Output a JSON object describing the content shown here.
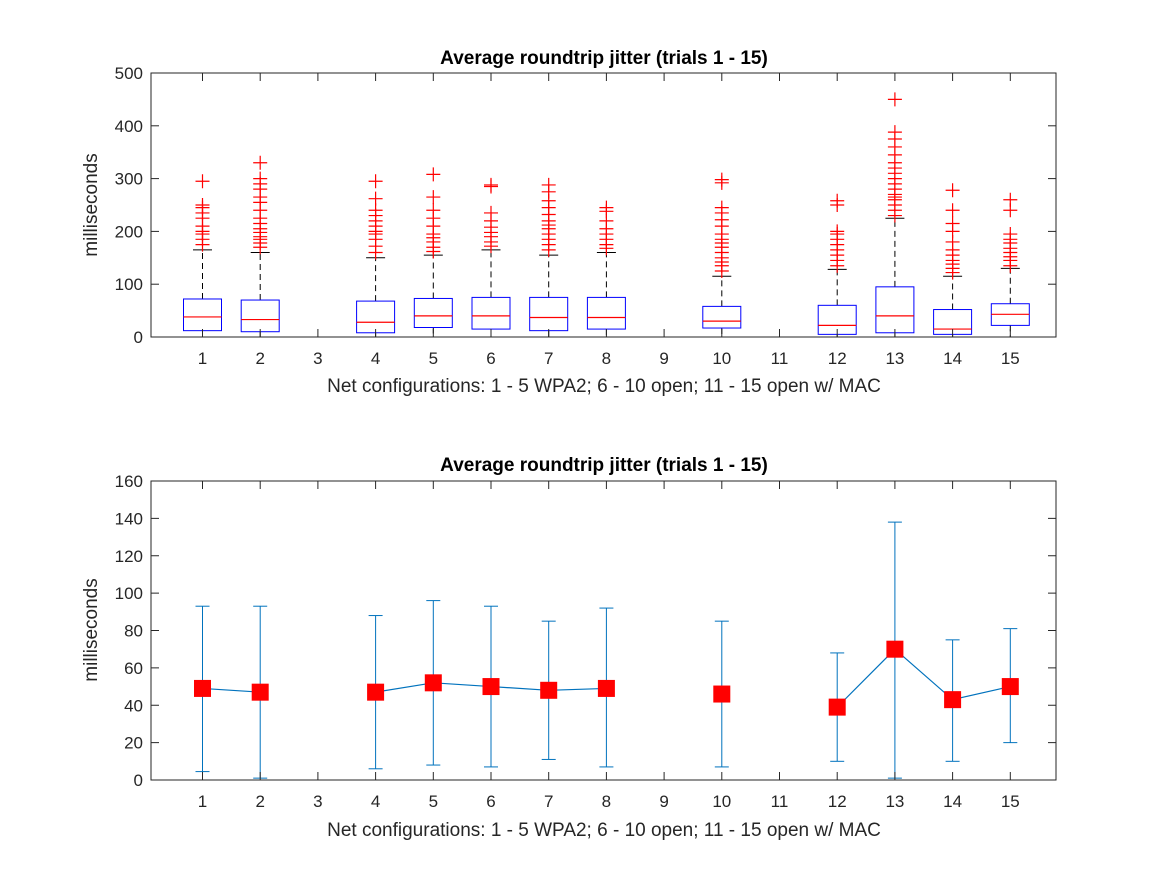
{
  "chart_data": [
    {
      "type": "box",
      "title": "Average roundtrip jitter (trials 1 - 15)",
      "xlabel": "Net configurations: 1 - 5 WPA2; 6 - 10 open; 11 - 15 open w/ MAC",
      "ylabel": "milliseconds",
      "ylim": [
        0,
        500
      ],
      "yticks": [
        0,
        100,
        200,
        300,
        400,
        500
      ],
      "x_categories": [
        "1",
        "2",
        "3",
        "4",
        "5",
        "6",
        "7",
        "8",
        "9",
        "10",
        "11",
        "12",
        "13",
        "14",
        "15"
      ],
      "colors": {
        "box": "#0000ff",
        "median": "#ff0000",
        "whisker": "#000000",
        "outlier": "#ff0000"
      },
      "boxes": [
        {
          "x": 1,
          "q1": 12,
          "median": 38,
          "q3": 72,
          "whisker_low": 0,
          "whisker_high": 165,
          "outliers": [
            175,
            185,
            195,
            200,
            210,
            225,
            235,
            245,
            250,
            295
          ]
        },
        {
          "x": 2,
          "q1": 10,
          "median": 33,
          "q3": 70,
          "whisker_low": 0,
          "whisker_high": 160,
          "outliers": [
            170,
            178,
            185,
            190,
            198,
            205,
            215,
            225,
            240,
            255,
            265,
            280,
            290,
            300,
            330
          ]
        },
        {
          "x": 4,
          "q1": 8,
          "median": 28,
          "q3": 68,
          "whisker_low": 0,
          "whisker_high": 150,
          "outliers": [
            160,
            172,
            185,
            195,
            200,
            210,
            220,
            230,
            240,
            262,
            295
          ]
        },
        {
          "x": 5,
          "q1": 18,
          "median": 40,
          "q3": 73,
          "whisker_low": 0,
          "whisker_high": 155,
          "outliers": [
            162,
            170,
            180,
            188,
            195,
            210,
            225,
            240,
            265,
            308
          ]
        },
        {
          "x": 6,
          "q1": 15,
          "median": 40,
          "q3": 75,
          "whisker_low": 0,
          "whisker_high": 165,
          "outliers": [
            172,
            180,
            190,
            198,
            208,
            220,
            235,
            285,
            288
          ]
        },
        {
          "x": 7,
          "q1": 12,
          "median": 37,
          "q3": 75,
          "whisker_low": 0,
          "whisker_high": 155,
          "outliers": [
            165,
            175,
            185,
            195,
            205,
            212,
            220,
            232,
            245,
            258,
            275,
            288
          ]
        },
        {
          "x": 8,
          "q1": 15,
          "median": 37,
          "q3": 75,
          "whisker_low": 0,
          "whisker_high": 160,
          "outliers": [
            168,
            175,
            185,
            195,
            205,
            220,
            238,
            245
          ]
        },
        {
          "x": 10,
          "q1": 17,
          "median": 30,
          "q3": 58,
          "whisker_low": 0,
          "whisker_high": 115,
          "outliers": [
            125,
            135,
            142,
            150,
            160,
            170,
            178,
            185,
            195,
            210,
            222,
            235,
            245,
            292,
            298
          ]
        },
        {
          "x": 12,
          "q1": 5,
          "median": 22,
          "q3": 60,
          "whisker_low": 0,
          "whisker_high": 128,
          "outliers": [
            135,
            145,
            155,
            165,
            175,
            185,
            195,
            200,
            250,
            258
          ]
        },
        {
          "x": 13,
          "q1": 8,
          "median": 40,
          "q3": 95,
          "whisker_low": 0,
          "whisker_high": 225,
          "outliers": [
            230,
            240,
            250,
            260,
            265,
            270,
            280,
            290,
            300,
            310,
            320,
            330,
            345,
            360,
            375,
            388,
            450
          ]
        },
        {
          "x": 14,
          "q1": 5,
          "median": 15,
          "q3": 52,
          "whisker_low": 0,
          "whisker_high": 115,
          "outliers": [
            122,
            130,
            138,
            145,
            155,
            165,
            180,
            200,
            215,
            240,
            278
          ]
        },
        {
          "x": 15,
          "q1": 22,
          "median": 43,
          "q3": 63,
          "whisker_low": 0,
          "whisker_high": 130,
          "outliers": [
            135,
            145,
            152,
            160,
            168,
            178,
            185,
            195,
            240,
            260
          ]
        }
      ]
    },
    {
      "type": "errorbar",
      "title": "Average roundtrip jitter (trials 1 - 15)",
      "xlabel": "Net configurations: 1 - 5 WPA2; 6 - 10 open; 11 - 15 open w/ MAC",
      "ylabel": "milliseconds",
      "ylim": [
        0,
        160
      ],
      "yticks": [
        0,
        20,
        40,
        60,
        80,
        100,
        120,
        140,
        160
      ],
      "x_categories": [
        "1",
        "2",
        "3",
        "4",
        "5",
        "6",
        "7",
        "8",
        "9",
        "10",
        "11",
        "12",
        "13",
        "14",
        "15"
      ],
      "colors": {
        "line": "#0072bd",
        "marker": "#ff0000"
      },
      "segments": [
        [
          1,
          2
        ],
        [
          4,
          5,
          6,
          7,
          8
        ],
        [
          10
        ],
        [
          12,
          13,
          14,
          15
        ]
      ],
      "points": [
        {
          "x": 1,
          "y": 49,
          "low": 4.5,
          "high": 93
        },
        {
          "x": 2,
          "y": 47,
          "low": 1,
          "high": 93
        },
        {
          "x": 4,
          "y": 47,
          "low": 6,
          "high": 88
        },
        {
          "x": 5,
          "y": 52,
          "low": 8,
          "high": 96
        },
        {
          "x": 6,
          "y": 50,
          "low": 7,
          "high": 93
        },
        {
          "x": 7,
          "y": 48,
          "low": 11,
          "high": 85
        },
        {
          "x": 8,
          "y": 49,
          "low": 7,
          "high": 92
        },
        {
          "x": 10,
          "y": 46,
          "low": 7,
          "high": 85
        },
        {
          "x": 12,
          "y": 39,
          "low": 10,
          "high": 68
        },
        {
          "x": 13,
          "y": 70,
          "low": 1,
          "high": 138
        },
        {
          "x": 14,
          "y": 43,
          "low": 10,
          "high": 75
        },
        {
          "x": 15,
          "y": 50,
          "low": 20,
          "high": 81
        }
      ]
    }
  ]
}
